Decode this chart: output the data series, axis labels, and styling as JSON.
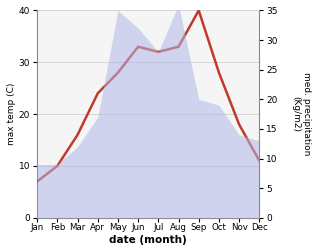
{
  "months": [
    "Jan",
    "Feb",
    "Mar",
    "Apr",
    "May",
    "Jun",
    "Jul",
    "Aug",
    "Sep",
    "Oct",
    "Nov",
    "Dec"
  ],
  "temperature": [
    7,
    10,
    16,
    24,
    28,
    33,
    32,
    33,
    40,
    28,
    18,
    11
  ],
  "precipitation": [
    9,
    9,
    12,
    17,
    35,
    32,
    28,
    36,
    20,
    19,
    14,
    13
  ],
  "temp_color": "#c0392b",
  "precip_color": "#b0b8e8",
  "ylim_temp": [
    0,
    40
  ],
  "ylim_precip": [
    0,
    35
  ],
  "yticks_temp": [
    0,
    10,
    20,
    30,
    40
  ],
  "yticks_precip": [
    0,
    5,
    10,
    15,
    20,
    25,
    30,
    35
  ],
  "ylabel_left": "max temp (C)",
  "ylabel_right": "med. precipitation\n(Kg/m2)",
  "xlabel": "date (month)",
  "bg_color": "#ffffff",
  "plot_bg_color": "#f5f5f5",
  "grid_color": "#d0d0d0",
  "temp_linewidth": 1.8,
  "fill_alpha": 0.55
}
